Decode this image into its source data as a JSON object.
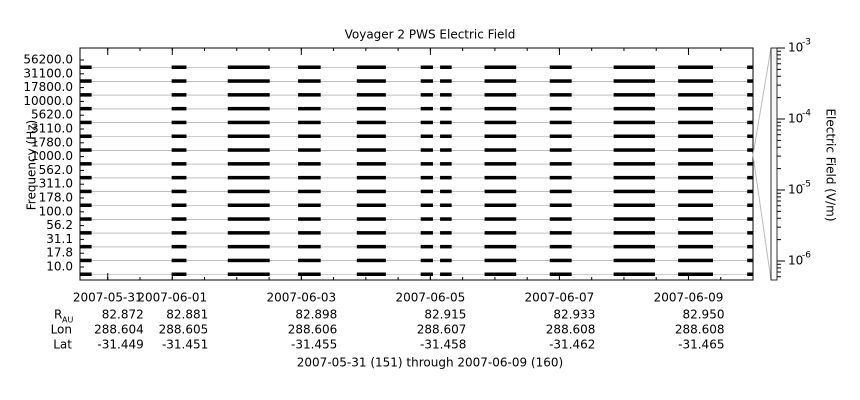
{
  "chart_data": {
    "type": "spectrogram",
    "title": "Voyager 2 PWS Electric Field",
    "y_label": "Frequency (Hz)",
    "channels": [
      "10.0",
      "17.8",
      "31.1",
      "56.2",
      "100.0",
      "178.0",
      "311.0",
      "562.0",
      "1000.0",
      "1780.0",
      "3110.0",
      "5620.0",
      "10000.0",
      "17800.0",
      "31100.0",
      "56200.0"
    ],
    "xlim": [
      -0.43,
      10.0
    ],
    "xticks": [
      {
        "value": 0,
        "label": "2007-05-31"
      },
      {
        "value": 1,
        "label": "2007-06-01"
      },
      {
        "value": 3,
        "label": "2007-06-03"
      },
      {
        "value": 5,
        "label": "2007-06-05"
      },
      {
        "value": 7,
        "label": "2007-06-07"
      },
      {
        "value": 9,
        "label": "2007-06-09"
      }
    ],
    "segments": [
      [
        -0.43,
        -0.25
      ],
      [
        0.99,
        1.22
      ],
      [
        1.86,
        2.51
      ],
      [
        2.95,
        3.3
      ],
      [
        3.86,
        4.31
      ],
      [
        4.85,
        5.04
      ],
      [
        5.15,
        5.33
      ],
      [
        5.84,
        6.33
      ],
      [
        6.85,
        7.19
      ],
      [
        7.84,
        8.48
      ],
      [
        8.84,
        9.38
      ],
      [
        9.91,
        10.0
      ]
    ],
    "color": "#000000",
    "ephemeris": [
      {
        "label": "R",
        "sub": "AU",
        "values": [
          "82.872",
          "82.881",
          "82.898",
          "82.915",
          "82.933",
          "82.950"
        ]
      },
      {
        "label": "Lon",
        "values": [
          "288.604",
          "288.605",
          "288.606",
          "288.607",
          "288.608",
          "288.608"
        ]
      },
      {
        "label": "Lat",
        "values": [
          "-31.449",
          "-31.451",
          "-31.455",
          "-31.458",
          "-31.462",
          "-31.465"
        ]
      }
    ],
    "footer": "2007-05-31 (151) through 2007-06-09 (160)",
    "colorbar": {
      "label": "Electric Field (V/m)",
      "log": true,
      "lim": [
        5.4e-07,
        0.001
      ],
      "ticks": [
        {
          "value": 1e-06,
          "label": "10",
          "exponent": "-6"
        },
        {
          "value": 1e-05,
          "label": "10",
          "exponent": "-5"
        },
        {
          "value": 0.0001,
          "label": "10",
          "exponent": "-4"
        },
        {
          "value": 0.001,
          "label": "10",
          "exponent": "-3"
        }
      ]
    }
  }
}
